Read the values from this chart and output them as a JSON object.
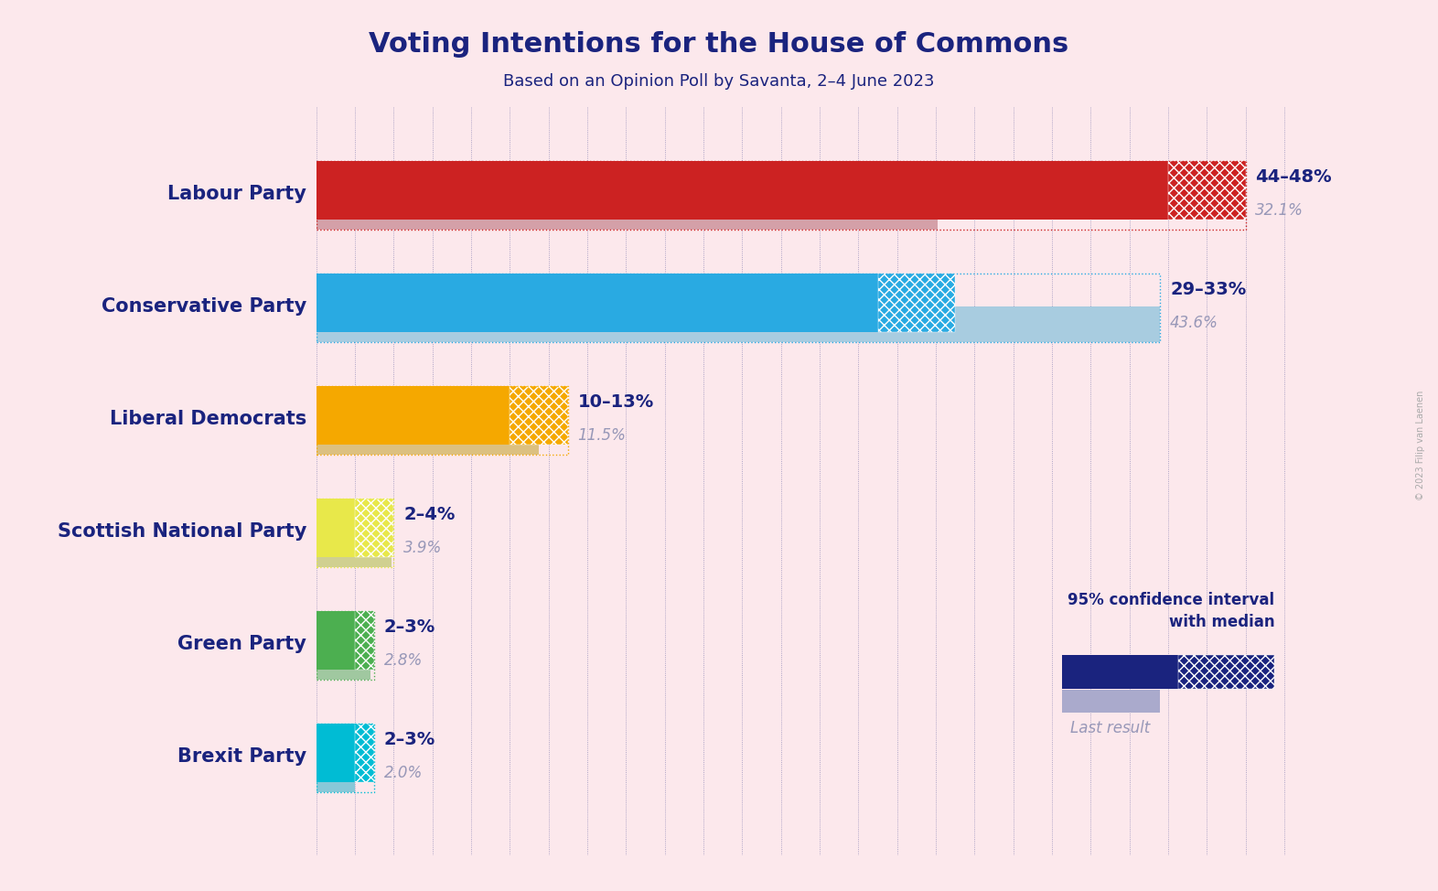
{
  "title": "Voting Intentions for the House of Commons",
  "subtitle": "Based on an Opinion Poll by Savanta, 2–4 June 2023",
  "copyright": "© 2023 Filip van Laenen",
  "background_color": "#fce8ec",
  "title_color": "#1a237e",
  "parties": [
    {
      "name": "Labour Party",
      "ci_low": 44,
      "ci_high": 48,
      "last_result": 32.1,
      "bar_color": "#cc2222",
      "last_color": "#d4a0a8",
      "label": "44–48%",
      "last_label": "32.1%"
    },
    {
      "name": "Conservative Party",
      "ci_low": 29,
      "ci_high": 33,
      "last_result": 43.6,
      "bar_color": "#29aae2",
      "last_color": "#a8cce0",
      "label": "29–33%",
      "last_label": "43.6%"
    },
    {
      "name": "Liberal Democrats",
      "ci_low": 10,
      "ci_high": 13,
      "last_result": 11.5,
      "bar_color": "#f5a800",
      "last_color": "#dcc080",
      "label": "10–13%",
      "last_label": "11.5%"
    },
    {
      "name": "Scottish National Party",
      "ci_low": 2,
      "ci_high": 4,
      "last_result": 3.9,
      "bar_color": "#e8e84a",
      "last_color": "#d0d090",
      "label": "2–4%",
      "last_label": "3.9%"
    },
    {
      "name": "Green Party",
      "ci_low": 2,
      "ci_high": 3,
      "last_result": 2.8,
      "bar_color": "#4caf50",
      "last_color": "#a0c8a0",
      "label": "2–3%",
      "last_label": "2.8%"
    },
    {
      "name": "Brexit Party",
      "ci_low": 2,
      "ci_high": 3,
      "last_result": 2.0,
      "bar_color": "#00bcd4",
      "last_color": "#88c8d8",
      "label": "2–3%",
      "last_label": "2.0%"
    }
  ],
  "xlim": [
    0,
    52
  ],
  "label_color": "#1a237e",
  "last_label_color": "#9898b8",
  "legend_ci_color": "#1a237e",
  "legend_last_color": "#aaaacc"
}
